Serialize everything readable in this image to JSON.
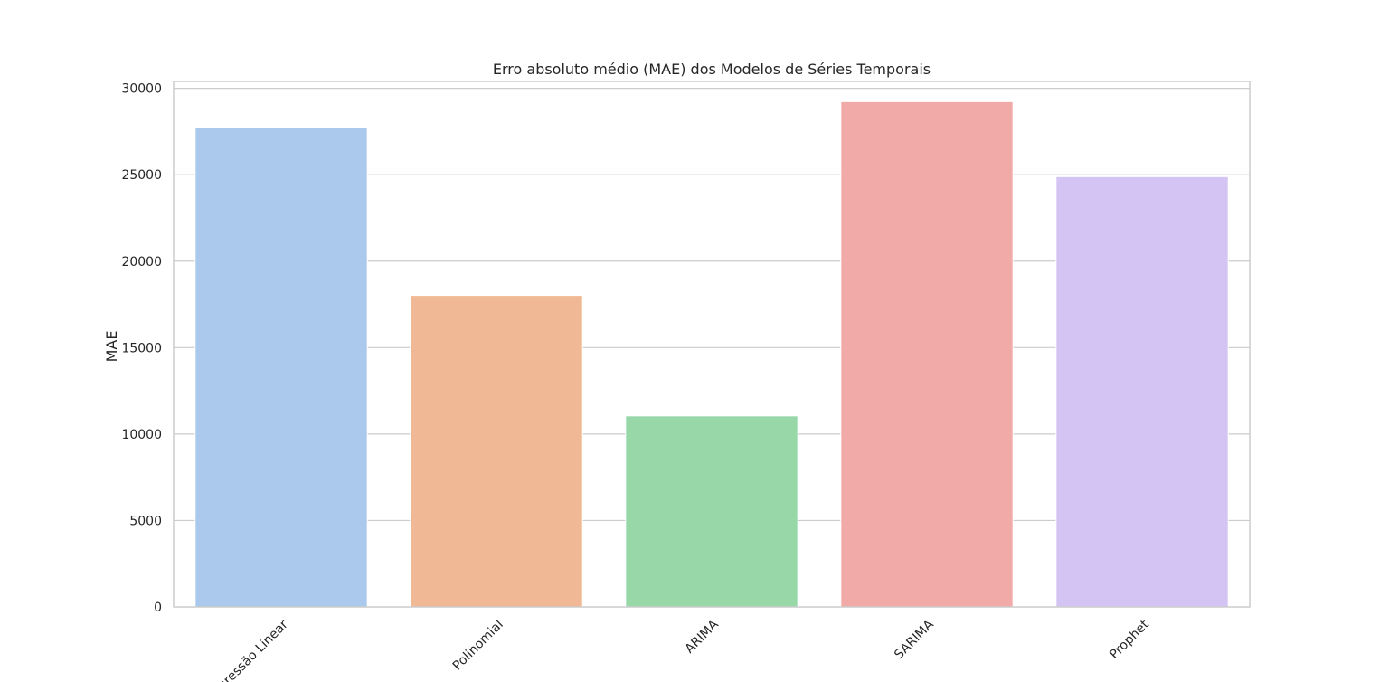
{
  "chart_data": {
    "type": "bar",
    "title": "Erro absoluto médio (MAE) dos Modelos de Séries Temporais",
    "xlabel": "",
    "ylabel": "MAE",
    "categories": [
      "Regressão Linear",
      "Polinomial",
      "ARIMA",
      "SARIMA",
      "Prophet"
    ],
    "values": [
      27750,
      18020,
      11050,
      29230,
      24890
    ],
    "colors": [
      "#abc9ed",
      "#f0b894",
      "#98d8a8",
      "#f2aaa8",
      "#d4c4f4"
    ],
    "ylim": [
      0,
      30400
    ],
    "yticks": [
      0,
      5000,
      10000,
      15000,
      20000,
      25000,
      30000
    ],
    "ytick_labels": [
      "0",
      "5000",
      "10000",
      "15000",
      "20000",
      "25000",
      "30000"
    ],
    "grid": "horizontal",
    "legend": "none"
  }
}
